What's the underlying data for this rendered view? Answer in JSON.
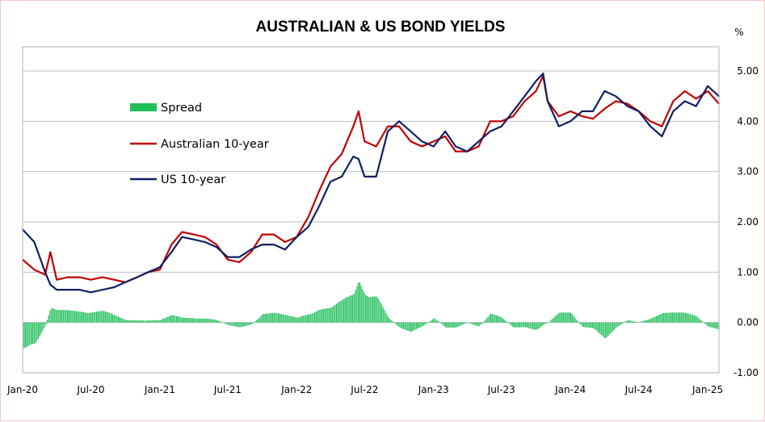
{
  "chart_data": {
    "type": "line",
    "title": "AUSTRALIAN & US BOND YIELDS",
    "ylabel": "%",
    "ylim": [
      -1.0,
      5.0
    ],
    "yticks": [
      "5.00",
      "4.00",
      "3.00",
      "2.00",
      "1.00",
      "0.00",
      "-1.00"
    ],
    "xlim": [
      "2020-01-01",
      "2025-01-31"
    ],
    "xticks": [
      {
        "label": "Jan-20",
        "date": "2020-01-01"
      },
      {
        "label": "Jul-20",
        "date": "2020-07-01"
      },
      {
        "label": "Jan-21",
        "date": "2021-01-01"
      },
      {
        "label": "Jul-21",
        "date": "2021-07-01"
      },
      {
        "label": "Jan-22",
        "date": "2022-01-01"
      },
      {
        "label": "Jul-22",
        "date": "2022-07-01"
      },
      {
        "label": "Jan-23",
        "date": "2023-01-01"
      },
      {
        "label": "Jul-23",
        "date": "2023-07-01"
      },
      {
        "label": "Jan-24",
        "date": "2024-01-01"
      },
      {
        "label": "Jul-24",
        "date": "2024-07-01"
      },
      {
        "label": "Jan-25",
        "date": "2025-01-01"
      }
    ],
    "grid": true,
    "legend_position": "upper-left",
    "x": [
      "2020-01-01",
      "2020-02-01",
      "2020-03-01",
      "2020-03-15",
      "2020-04-01",
      "2020-05-01",
      "2020-06-01",
      "2020-07-01",
      "2020-08-01",
      "2020-09-01",
      "2020-10-01",
      "2020-11-01",
      "2020-12-01",
      "2021-01-01",
      "2021-02-01",
      "2021-03-01",
      "2021-04-01",
      "2021-05-01",
      "2021-06-01",
      "2021-07-01",
      "2021-08-01",
      "2021-09-01",
      "2021-10-01",
      "2021-11-01",
      "2021-12-01",
      "2022-01-01",
      "2022-02-01",
      "2022-03-01",
      "2022-04-01",
      "2022-05-01",
      "2022-06-01",
      "2022-06-15",
      "2022-07-01",
      "2022-08-01",
      "2022-09-01",
      "2022-10-01",
      "2022-11-01",
      "2022-12-01",
      "2023-01-01",
      "2023-02-01",
      "2023-03-01",
      "2023-04-01",
      "2023-05-01",
      "2023-06-01",
      "2023-07-01",
      "2023-08-01",
      "2023-09-01",
      "2023-10-01",
      "2023-10-20",
      "2023-11-01",
      "2023-12-01",
      "2024-01-01",
      "2024-02-01",
      "2024-03-01",
      "2024-04-01",
      "2024-05-01",
      "2024-06-01",
      "2024-07-01",
      "2024-08-01",
      "2024-09-01",
      "2024-10-01",
      "2024-11-01",
      "2024-12-01",
      "2025-01-01",
      "2025-01-31"
    ],
    "series": [
      {
        "name": "Australian 10-year",
        "color": "#c00000",
        "values": [
          1.25,
          1.05,
          0.95,
          1.4,
          0.85,
          0.9,
          0.9,
          0.85,
          0.9,
          0.85,
          0.8,
          0.9,
          1.0,
          1.05,
          1.55,
          1.8,
          1.75,
          1.7,
          1.55,
          1.25,
          1.2,
          1.4,
          1.75,
          1.75,
          1.6,
          1.7,
          2.1,
          2.6,
          3.1,
          3.35,
          3.9,
          4.2,
          3.6,
          3.5,
          3.9,
          3.9,
          3.6,
          3.5,
          3.6,
          3.7,
          3.4,
          3.4,
          3.5,
          4.0,
          4.0,
          4.1,
          4.4,
          4.6,
          4.9,
          4.4,
          4.1,
          4.2,
          4.1,
          4.05,
          4.25,
          4.4,
          4.35,
          4.2,
          4.0,
          3.9,
          4.4,
          4.6,
          4.45,
          4.6,
          4.35
        ]
      },
      {
        "name": "US 10-year",
        "color": "#0f2064",
        "values": [
          1.85,
          1.6,
          1.0,
          0.75,
          0.65,
          0.65,
          0.65,
          0.6,
          0.65,
          0.7,
          0.8,
          0.9,
          1.0,
          1.1,
          1.4,
          1.7,
          1.65,
          1.6,
          1.5,
          1.3,
          1.3,
          1.45,
          1.55,
          1.55,
          1.45,
          1.7,
          1.9,
          2.3,
          2.8,
          2.9,
          3.3,
          3.25,
          2.9,
          2.9,
          3.8,
          4.0,
          3.8,
          3.6,
          3.5,
          3.8,
          3.5,
          3.4,
          3.6,
          3.8,
          3.9,
          4.2,
          4.5,
          4.8,
          4.95,
          4.4,
          3.9,
          4.0,
          4.2,
          4.2,
          4.6,
          4.5,
          4.3,
          4.2,
          3.9,
          3.7,
          4.2,
          4.4,
          4.3,
          4.7,
          4.5
        ]
      },
      {
        "name": "Spread",
        "color": "#1fbf5a",
        "values": [
          -0.6,
          -0.55,
          -0.05,
          0.3,
          0.25,
          0.25,
          0.25,
          0.25,
          0.25,
          0.15,
          0.05,
          0.05,
          0.05,
          0.05,
          0.15,
          0.1,
          0.1,
          0.1,
          0.05,
          -0.05,
          -0.1,
          -0.05,
          0.2,
          0.2,
          0.15,
          0.1,
          0.2,
          0.3,
          0.3,
          0.45,
          0.6,
          0.95,
          0.7,
          0.6,
          0.1,
          -0.1,
          -0.2,
          -0.1,
          0.1,
          -0.1,
          -0.1,
          0.0,
          -0.1,
          0.2,
          0.1,
          -0.1,
          -0.1,
          -0.2,
          -0.05,
          0.0,
          0.2,
          0.2,
          -0.1,
          -0.15,
          -0.35,
          -0.1,
          0.05,
          0.0,
          0.1,
          0.2,
          0.2,
          0.2,
          0.15,
          -0.1,
          -0.15
        ]
      }
    ]
  }
}
